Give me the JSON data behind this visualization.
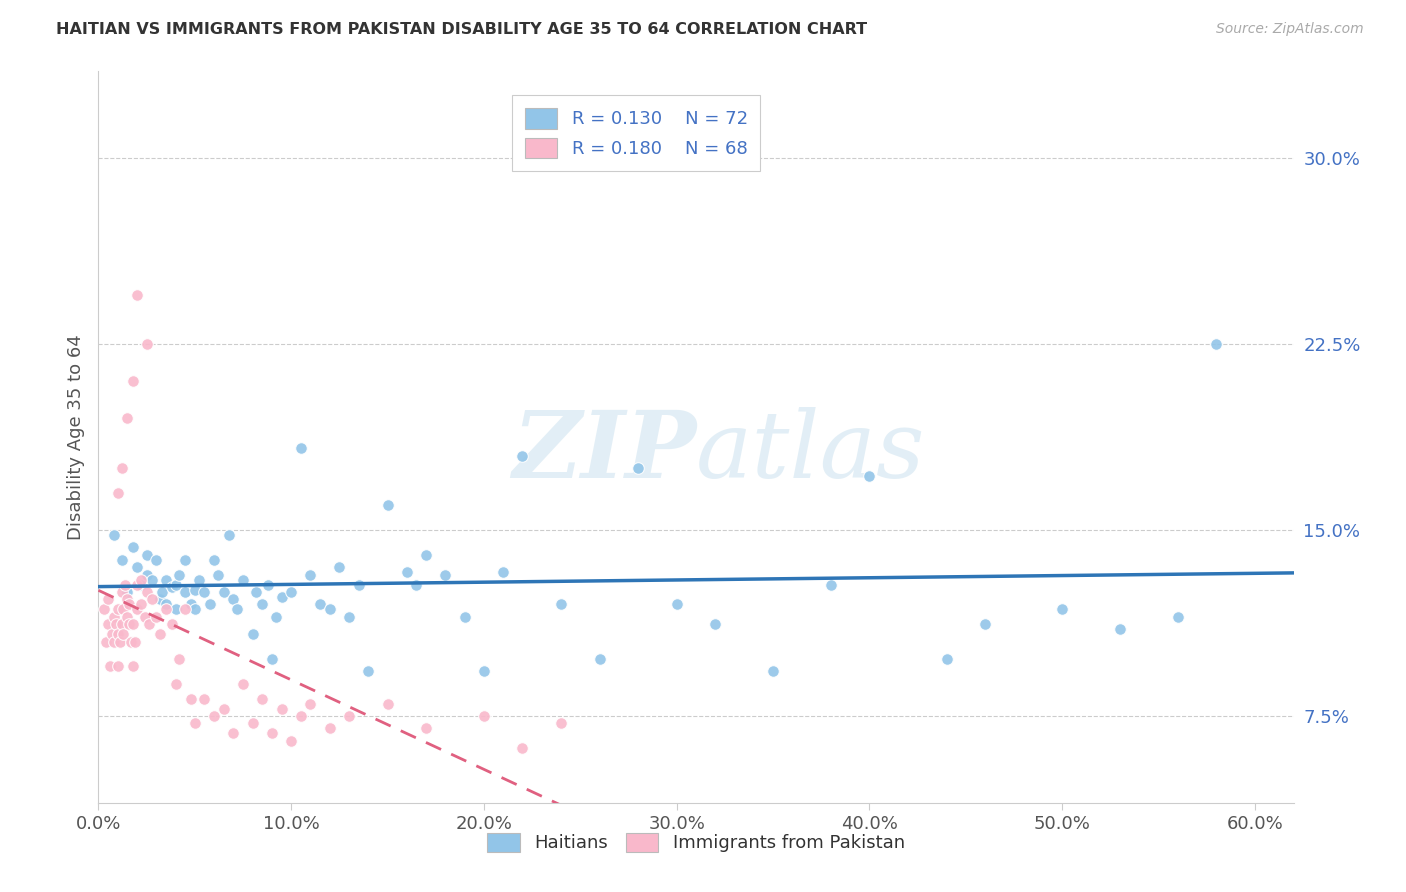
{
  "title": "HAITIAN VS IMMIGRANTS FROM PAKISTAN DISABILITY AGE 35 TO 64 CORRELATION CHART",
  "source": "Source: ZipAtlas.com",
  "ylabel": "Disability Age 35 to 64",
  "xlabel_ticks": [
    "0.0%",
    "10.0%",
    "20.0%",
    "30.0%",
    "40.0%",
    "50.0%",
    "60.0%"
  ],
  "xlabel_vals": [
    0.0,
    0.1,
    0.2,
    0.3,
    0.4,
    0.5,
    0.6
  ],
  "ytick_labels": [
    "7.5%",
    "15.0%",
    "22.5%",
    "30.0%"
  ],
  "ytick_vals": [
    0.075,
    0.15,
    0.225,
    0.3
  ],
  "xlim": [
    0.0,
    0.62
  ],
  "ylim": [
    0.04,
    0.335
  ],
  "legend_r1": "0.130",
  "legend_n1": "72",
  "legend_r2": "0.180",
  "legend_n2": "68",
  "color_blue": "#92c5e8",
  "color_pink": "#f9b8cb",
  "color_blue_line": "#2e75b6",
  "color_pink_line": "#e06080",
  "color_text_blue": "#4472c4",
  "color_title": "#404040",
  "watermark_color": "#d0e4f0",
  "grid_color": "#cccccc",
  "bg_color": "#ffffff",
  "blue_scatter_x": [
    0.008,
    0.012,
    0.015,
    0.018,
    0.02,
    0.022,
    0.025,
    0.025,
    0.028,
    0.03,
    0.032,
    0.033,
    0.035,
    0.035,
    0.038,
    0.04,
    0.04,
    0.042,
    0.045,
    0.045,
    0.048,
    0.05,
    0.05,
    0.052,
    0.055,
    0.058,
    0.06,
    0.062,
    0.065,
    0.068,
    0.07,
    0.072,
    0.075,
    0.08,
    0.082,
    0.085,
    0.088,
    0.09,
    0.092,
    0.095,
    0.1,
    0.105,
    0.11,
    0.115,
    0.12,
    0.125,
    0.13,
    0.135,
    0.14,
    0.15,
    0.16,
    0.165,
    0.17,
    0.18,
    0.19,
    0.2,
    0.21,
    0.22,
    0.24,
    0.26,
    0.28,
    0.3,
    0.32,
    0.35,
    0.38,
    0.4,
    0.44,
    0.46,
    0.5,
    0.53,
    0.56,
    0.58
  ],
  "blue_scatter_y": [
    0.148,
    0.138,
    0.125,
    0.143,
    0.135,
    0.128,
    0.132,
    0.14,
    0.13,
    0.138,
    0.122,
    0.125,
    0.13,
    0.12,
    0.127,
    0.128,
    0.118,
    0.132,
    0.138,
    0.125,
    0.12,
    0.126,
    0.118,
    0.13,
    0.125,
    0.12,
    0.138,
    0.132,
    0.125,
    0.148,
    0.122,
    0.118,
    0.13,
    0.108,
    0.125,
    0.12,
    0.128,
    0.098,
    0.115,
    0.123,
    0.125,
    0.183,
    0.132,
    0.12,
    0.118,
    0.135,
    0.115,
    0.128,
    0.093,
    0.16,
    0.133,
    0.128,
    0.14,
    0.132,
    0.115,
    0.093,
    0.133,
    0.18,
    0.12,
    0.098,
    0.175,
    0.12,
    0.112,
    0.093,
    0.128,
    0.172,
    0.098,
    0.112,
    0.118,
    0.11,
    0.115,
    0.225
  ],
  "pink_scatter_x": [
    0.003,
    0.004,
    0.005,
    0.005,
    0.006,
    0.007,
    0.008,
    0.008,
    0.009,
    0.01,
    0.01,
    0.01,
    0.011,
    0.012,
    0.012,
    0.013,
    0.013,
    0.014,
    0.015,
    0.015,
    0.016,
    0.016,
    0.017,
    0.018,
    0.018,
    0.019,
    0.02,
    0.02,
    0.022,
    0.022,
    0.024,
    0.025,
    0.026,
    0.028,
    0.03,
    0.032,
    0.035,
    0.038,
    0.04,
    0.042,
    0.045,
    0.048,
    0.05,
    0.055,
    0.06,
    0.065,
    0.07,
    0.075,
    0.08,
    0.085,
    0.09,
    0.095,
    0.1,
    0.105,
    0.11,
    0.12,
    0.13,
    0.15,
    0.17,
    0.2,
    0.22,
    0.24,
    0.02,
    0.025,
    0.018,
    0.015,
    0.012,
    0.01
  ],
  "pink_scatter_y": [
    0.118,
    0.105,
    0.122,
    0.112,
    0.095,
    0.108,
    0.115,
    0.105,
    0.112,
    0.118,
    0.108,
    0.095,
    0.105,
    0.112,
    0.125,
    0.118,
    0.108,
    0.128,
    0.122,
    0.115,
    0.112,
    0.12,
    0.105,
    0.112,
    0.095,
    0.105,
    0.128,
    0.118,
    0.13,
    0.12,
    0.115,
    0.125,
    0.112,
    0.122,
    0.115,
    0.108,
    0.118,
    0.112,
    0.088,
    0.098,
    0.118,
    0.082,
    0.072,
    0.082,
    0.075,
    0.078,
    0.068,
    0.088,
    0.072,
    0.082,
    0.068,
    0.078,
    0.065,
    0.075,
    0.08,
    0.07,
    0.075,
    0.08,
    0.07,
    0.075,
    0.062,
    0.072,
    0.245,
    0.225,
    0.21,
    0.195,
    0.175,
    0.165
  ]
}
